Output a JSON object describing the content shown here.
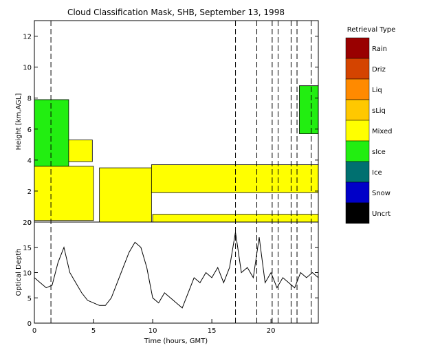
{
  "chart_data": [
    {
      "type": "heatmap",
      "title": "Cloud Classification Mask, SHB, September 13, 1998",
      "ylabel": "Height [km,AGL]",
      "xlim": [
        0,
        24
      ],
      "ylim": [
        0,
        13
      ],
      "y_ticks": [
        "0",
        "2",
        "4",
        "6",
        "8",
        "10",
        "12"
      ],
      "regions": [
        {
          "class": "sIce",
          "t_start": 0.0,
          "t_end": 2.9,
          "base_km": 3.6,
          "top_km": 7.9
        },
        {
          "class": "sIce",
          "t_start": 22.4,
          "t_end": 24.0,
          "base_km": 5.7,
          "top_km": 8.8
        },
        {
          "class": "Mixed",
          "t_start": 0.0,
          "t_end": 5.0,
          "base_km": 0.1,
          "top_km": 3.6
        },
        {
          "class": "Mixed",
          "t_start": 2.9,
          "t_end": 4.9,
          "base_km": 3.9,
          "top_km": 5.3
        },
        {
          "class": "Mixed",
          "t_start": 5.5,
          "t_end": 9.9,
          "base_km": 0.0,
          "top_km": 3.5
        },
        {
          "class": "Mixed",
          "t_start": 9.9,
          "t_end": 24.0,
          "base_km": 1.9,
          "top_km": 3.7
        },
        {
          "class": "Mixed",
          "t_start": 10.0,
          "t_end": 24.0,
          "base_km": 0.0,
          "top_km": 0.5
        }
      ],
      "dashed_times": [
        1.4,
        17.0,
        18.8,
        20.1,
        20.6,
        21.7,
        22.2,
        23.4
      ]
    },
    {
      "type": "line",
      "xlabel": "Time (hours, GMT)",
      "ylabel": "Optical Depth",
      "xlim": [
        0,
        24
      ],
      "ylim": [
        0,
        20
      ],
      "x_ticks": [
        "0",
        "5",
        "10",
        "15",
        "20"
      ],
      "y_ticks": [
        "0",
        "5",
        "10",
        "15",
        "20"
      ],
      "x": [
        0,
        0.5,
        1.0,
        1.5,
        2.0,
        2.5,
        3.0,
        3.5,
        4.0,
        4.5,
        5.0,
        5.5,
        6.0,
        6.5,
        7.0,
        7.5,
        8.0,
        8.5,
        9.0,
        9.5,
        10.0,
        10.5,
        11.0,
        11.5,
        12.0,
        12.5,
        13.0,
        13.5,
        14.0,
        14.5,
        15.0,
        15.5,
        16.0,
        16.5,
        17.0,
        17.5,
        18.0,
        18.5,
        19.0,
        19.5,
        20.0,
        20.5,
        21.0,
        21.5,
        22.0,
        22.5,
        23.0,
        23.5,
        24.0
      ],
      "values": [
        9,
        8,
        7,
        7.5,
        12,
        15,
        10,
        8,
        6,
        4.5,
        4,
        3.5,
        3.5,
        5,
        8,
        11,
        14,
        16,
        15,
        11,
        5,
        4,
        6,
        5,
        4,
        3,
        6,
        9,
        8,
        10,
        9,
        11,
        8,
        11,
        18,
        10,
        11,
        9,
        17,
        8,
        10,
        7,
        9,
        8,
        7,
        10,
        9,
        10,
        9
      ]
    },
    {
      "legend_title": "Retrieval Type",
      "legend": [
        {
          "label": "Rain",
          "color": "#990000"
        },
        {
          "label": "Driz",
          "color": "#d44400"
        },
        {
          "label": "Liq",
          "color": "#ff8a00"
        },
        {
          "label": "sLiq",
          "color": "#ffc800"
        },
        {
          "label": "Mixed",
          "color": "#ffff00"
        },
        {
          "label": "sIce",
          "color": "#22ee11"
        },
        {
          "label": "Ice",
          "color": "#007070"
        },
        {
          "label": "Snow",
          "color": "#0000c8"
        },
        {
          "label": "Uncrt",
          "color": "#000000"
        }
      ]
    }
  ]
}
